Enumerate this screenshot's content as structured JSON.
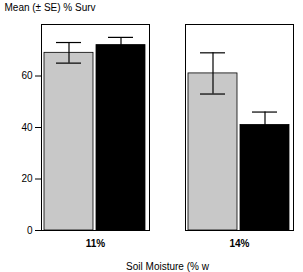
{
  "chart_data": {
    "type": "bar",
    "xlabel": "Soil Moisture (% w",
    "ylabel": "Mean (± SE) % Surv",
    "categories": [
      "11%",
      "14%"
    ],
    "series": [
      {
        "color": "#c8c8c8",
        "values": [
          69,
          61
        ],
        "errors": [
          4,
          8
        ]
      },
      {
        "color": "#000000",
        "values": [
          72,
          41
        ],
        "errors": [
          3,
          5
        ]
      }
    ],
    "ylim": [
      0,
      80
    ],
    "yticks": [
      0,
      20,
      40,
      60
    ],
    "grid": false
  }
}
